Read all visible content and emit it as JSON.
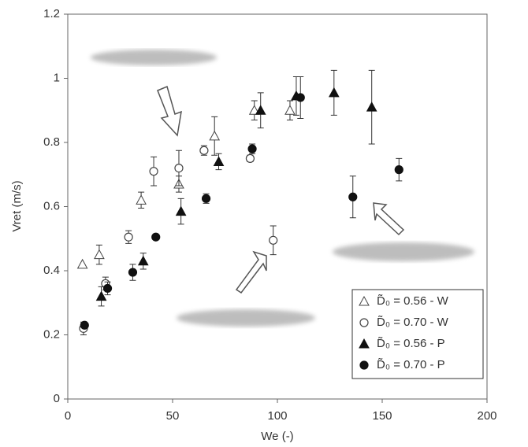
{
  "chart_data": {
    "type": "scatter",
    "x_label": "We (-)",
    "y_label": "Vret (m/s)",
    "xlim": [
      0,
      200
    ],
    "xticks": [
      0,
      50,
      100,
      150,
      200
    ],
    "ylim": [
      0,
      1.2
    ],
    "yticks": [
      0,
      0.2,
      0.4,
      0.6,
      0.8,
      1,
      1.2
    ],
    "legend": "lower right",
    "series": [
      {
        "name": "D̃₀ = 0.56 - W",
        "color": "#444",
        "marker": "triangle-open",
        "x": [
          7,
          15,
          35,
          53,
          70,
          89,
          106
        ],
        "values": [
          0.42,
          0.45,
          0.62,
          0.67,
          0.82,
          0.9,
          0.9
        ],
        "errors": [
          null,
          0.03,
          0.025,
          0.025,
          0.06,
          0.03,
          0.03
        ]
      },
      {
        "name": "D̃₀ = 0.70 - W",
        "color": "#444",
        "marker": "circle-open",
        "x": [
          7.5,
          18,
          29,
          41,
          53,
          65,
          87,
          98
        ],
        "values": [
          0.22,
          0.36,
          0.505,
          0.71,
          0.72,
          0.775,
          0.75,
          0.495
        ],
        "errors": [
          0.02,
          0.02,
          0.02,
          0.045,
          0.055,
          0.015,
          0.01,
          0.045
        ]
      },
      {
        "name": "D̃₀ = 0.56 - P",
        "color": "#111",
        "marker": "triangle",
        "x": [
          16,
          36,
          54,
          72,
          92,
          109,
          127,
          145
        ],
        "values": [
          0.32,
          0.43,
          0.585,
          0.74,
          0.9,
          0.945,
          0.955,
          0.91
        ],
        "errors": [
          0.03,
          0.025,
          0.04,
          0.025,
          0.055,
          0.06,
          0.07,
          0.115
        ]
      },
      {
        "name": "D̃₀ = 0.70 - P",
        "color": "#111",
        "marker": "circle",
        "x": [
          8,
          19,
          31,
          42,
          66,
          88,
          111,
          136,
          158
        ],
        "values": [
          0.23,
          0.345,
          0.395,
          0.505,
          0.625,
          0.78,
          0.94,
          0.63,
          0.715
        ],
        "errors": [
          null,
          0.02,
          0.025,
          null,
          0.015,
          0.015,
          0.065,
          0.065,
          0.035
        ]
      }
    ]
  }
}
